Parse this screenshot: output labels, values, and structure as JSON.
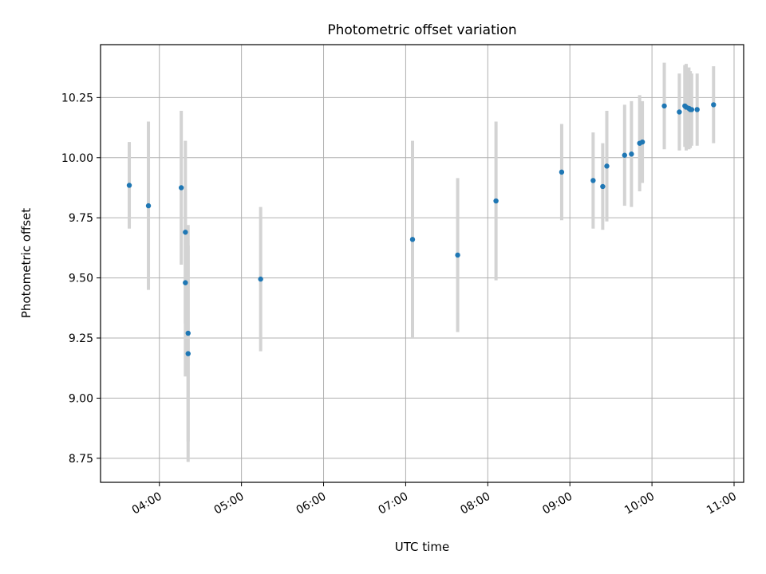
{
  "chart_data": {
    "type": "scatter",
    "title": "Photometric offset variation",
    "xlabel": "UTC time",
    "ylabel": "Photometric offset",
    "x_unit": "UTC time (HH:MM)",
    "xlim": [
      "03:17",
      "11:07"
    ],
    "ylim": [
      8.65,
      10.47
    ],
    "grid": true,
    "xticks": [
      "04:00",
      "05:00",
      "06:00",
      "07:00",
      "08:00",
      "09:00",
      "10:00",
      "11:00"
    ],
    "yticks": [
      "8.75",
      "9.00",
      "9.25",
      "9.50",
      "9.75",
      "10.00",
      "10.25"
    ],
    "marker_color": "#1f77b4",
    "errorbar_color": "#d3d3d3",
    "points": [
      {
        "x": "03:38",
        "y": 9.885,
        "err": 0.18
      },
      {
        "x": "03:52",
        "y": 9.8,
        "err": 0.35
      },
      {
        "x": "04:16",
        "y": 9.875,
        "err": 0.32
      },
      {
        "x": "04:19",
        "y": 9.69,
        "err": 0.38
      },
      {
        "x": "04:19",
        "y": 9.48,
        "err": 0.39
      },
      {
        "x": "04:21",
        "y": 9.27,
        "err": 0.45
      },
      {
        "x": "04:21",
        "y": 9.185,
        "err": 0.45
      },
      {
        "x": "05:14",
        "y": 9.495,
        "err": 0.3
      },
      {
        "x": "07:05",
        "y": 9.66,
        "err": 0.41
      },
      {
        "x": "07:38",
        "y": 9.595,
        "err": 0.32
      },
      {
        "x": "08:06",
        "y": 9.82,
        "err": 0.33
      },
      {
        "x": "08:54",
        "y": 9.94,
        "err": 0.2
      },
      {
        "x": "09:17",
        "y": 9.905,
        "err": 0.2
      },
      {
        "x": "09:24",
        "y": 9.88,
        "err": 0.18
      },
      {
        "x": "09:27",
        "y": 9.965,
        "err": 0.23
      },
      {
        "x": "09:40",
        "y": 10.01,
        "err": 0.21
      },
      {
        "x": "09:45",
        "y": 10.015,
        "err": 0.22
      },
      {
        "x": "09:51",
        "y": 10.06,
        "err": 0.2
      },
      {
        "x": "09:53",
        "y": 10.065,
        "err": 0.17
      },
      {
        "x": "10:09",
        "y": 10.215,
        "err": 0.18
      },
      {
        "x": "10:20",
        "y": 10.19,
        "err": 0.16
      },
      {
        "x": "10:24",
        "y": 10.215,
        "err": 0.17
      },
      {
        "x": "10:25",
        "y": 10.21,
        "err": 0.18
      },
      {
        "x": "10:27",
        "y": 10.205,
        "err": 0.17
      },
      {
        "x": "10:28",
        "y": 10.2,
        "err": 0.16
      },
      {
        "x": "10:29",
        "y": 10.2,
        "err": 0.15
      },
      {
        "x": "10:33",
        "y": 10.2,
        "err": 0.15
      },
      {
        "x": "10:45",
        "y": 10.22,
        "err": 0.16
      }
    ]
  }
}
